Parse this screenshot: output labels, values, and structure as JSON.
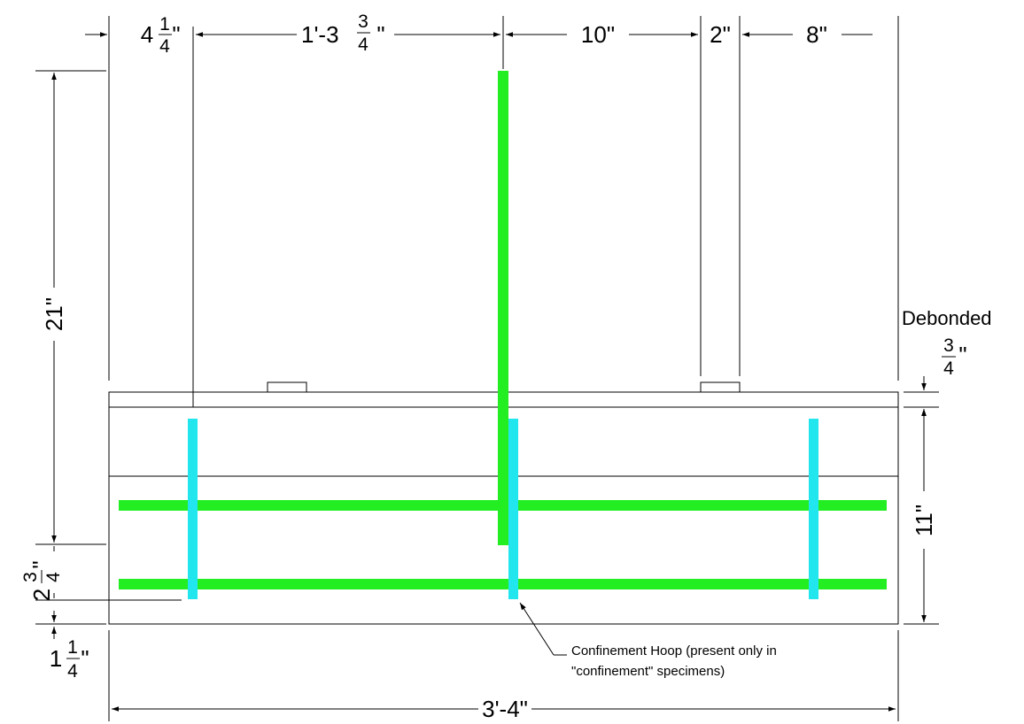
{
  "colors": {
    "longitudinal_rebar": "#22ee22",
    "confinement_hoop": "#22e6ee",
    "linework": "#000000"
  },
  "dimensions": {
    "top_1": {
      "whole": "4",
      "num": "1",
      "den": "4",
      "unit": "\""
    },
    "top_2": {
      "prefix": "1'-3",
      "num": "3",
      "den": "4",
      "unit": "\""
    },
    "top_3": "10\"",
    "top_4": "2\"",
    "top_5": "8\"",
    "left_height": "21\"",
    "left_bottom_1": {
      "whole": "2",
      "num": "3",
      "den": "4",
      "unit": "\""
    },
    "left_bottom_2": {
      "whole": "1",
      "num": "1",
      "den": "4",
      "unit": "\""
    },
    "right_top": {
      "num": "3",
      "den": "4",
      "unit": "\""
    },
    "right_height": "11\"",
    "bottom_width": "3'-4\""
  },
  "labels": {
    "debonded": "Debonded",
    "hoop_note_line1": "Confinement Hoop (present only in",
    "hoop_note_line2": "\"confinement\" specimens)"
  }
}
